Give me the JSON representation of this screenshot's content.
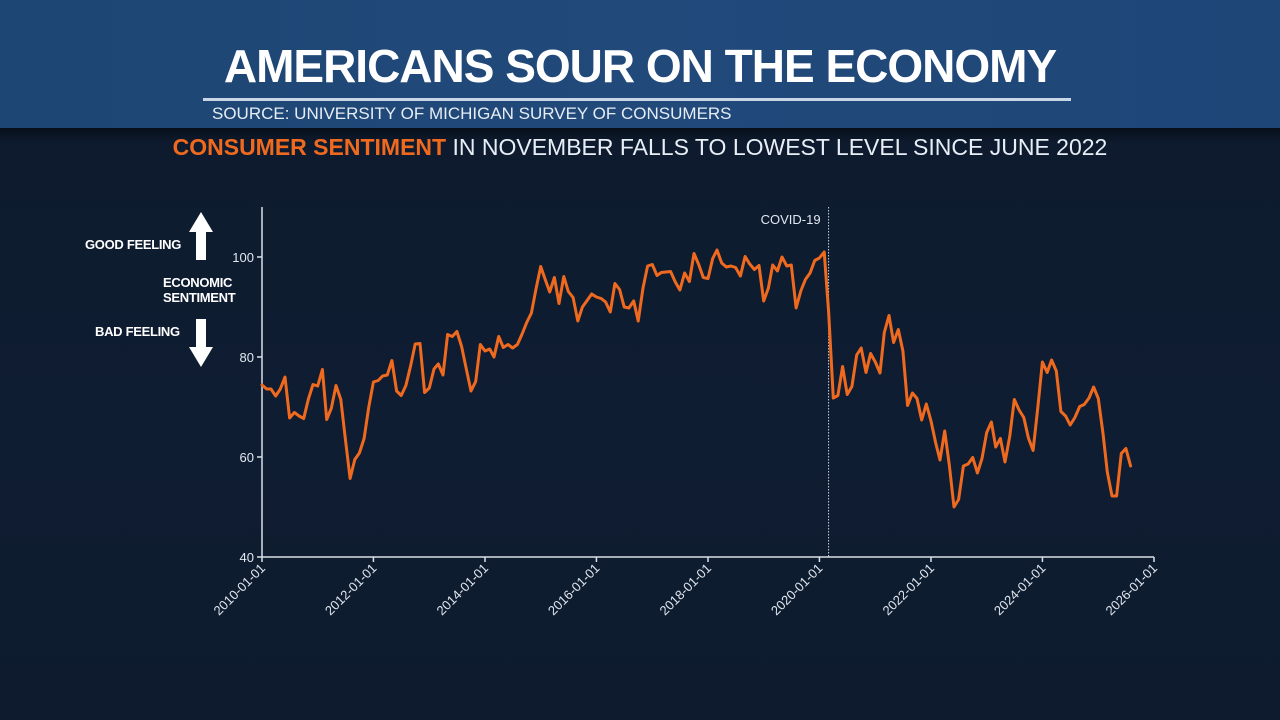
{
  "header": {
    "title": "AMERICANS SOUR ON THE ECONOMY",
    "source": "SOURCE: UNIVERSITY OF MICHIGAN SURVEY OF CONSUMERS"
  },
  "subtitle": {
    "highlight": "CONSUMER SENTIMENT",
    "rest": " IN NOVEMBER FALLS TO LOWEST LEVEL SINCE JUNE 2022"
  },
  "legend": {
    "good": "GOOD FEELING",
    "center_line1": "ECONOMIC",
    "center_line2": "SENTIMENT",
    "bad": "BAD FEELING"
  },
  "colors": {
    "line": "#ef6a1f",
    "accent": "#ef6a1f",
    "axis": "#d8dfe8"
  },
  "chart_data": {
    "type": "line",
    "title": "Consumer Sentiment",
    "xlabel": "",
    "ylabel": "Economic Sentiment",
    "ylim": [
      40,
      110
    ],
    "xlim": [
      "2010-01-01",
      "2026-01-01"
    ],
    "y_ticks": [
      40,
      60,
      80,
      100
    ],
    "x_ticks": [
      "2010-01-01",
      "2012-01-01",
      "2014-01-01",
      "2016-01-01",
      "2018-01-01",
      "2020-01-01",
      "2022-01-01",
      "2024-01-01",
      "2026-01-01"
    ],
    "annotation": {
      "label": "COVID-19",
      "date": "2020-03-01"
    },
    "grid": false,
    "series": [
      {
        "name": "Consumer Sentiment",
        "start": "2010-01",
        "frequency": "monthly",
        "values": [
          74.4,
          73.6,
          73.6,
          72.2,
          73.6,
          76.0,
          67.8,
          68.9,
          68.2,
          67.7,
          71.6,
          74.5,
          74.2,
          77.5,
          67.5,
          69.8,
          74.3,
          71.5,
          63.7,
          55.7,
          59.5,
          60.8,
          63.7,
          69.9,
          75.0,
          75.3,
          76.2,
          76.4,
          79.3,
          73.2,
          72.3,
          74.3,
          78.3,
          82.6,
          82.7,
          72.9,
          73.8,
          77.6,
          78.6,
          76.4,
          84.5,
          84.1,
          85.1,
          82.1,
          77.5,
          73.2,
          75.1,
          82.5,
          81.2,
          81.6,
          80.0,
          84.1,
          81.9,
          82.5,
          81.8,
          82.5,
          84.6,
          86.9,
          88.8,
          93.6,
          98.1,
          95.4,
          93.0,
          95.9,
          90.7,
          96.1,
          93.1,
          91.9,
          87.2,
          90.0,
          91.3,
          92.6,
          92.0,
          91.7,
          91.0,
          89.0,
          94.7,
          93.5,
          90.0,
          89.8,
          91.2,
          87.2,
          93.8,
          98.2,
          98.5,
          96.3,
          96.9,
          97.0,
          97.1,
          95.0,
          93.4,
          96.8,
          95.1,
          100.7,
          98.5,
          95.9,
          95.7,
          99.7,
          101.4,
          98.8,
          98.0,
          98.2,
          97.9,
          96.2,
          100.1,
          98.6,
          97.5,
          98.3,
          91.2,
          93.8,
          98.4,
          97.2,
          100.0,
          98.2,
          98.4,
          89.8,
          93.2,
          95.5,
          96.8,
          99.3,
          99.8,
          101.0,
          89.1,
          71.8,
          72.3,
          78.1,
          72.5,
          74.1,
          80.4,
          81.8,
          76.9,
          80.7,
          79.0,
          76.8,
          84.9,
          88.3,
          82.9,
          85.5,
          81.2,
          70.3,
          72.8,
          71.7,
          67.4,
          70.6,
          67.2,
          62.8,
          59.4,
          65.2,
          58.4,
          50.0,
          51.5,
          58.2,
          58.6,
          59.9,
          56.8,
          59.7,
          64.9,
          67.0,
          62.0,
          63.7,
          59.0,
          64.2,
          71.5,
          69.4,
          67.9,
          63.8,
          61.3,
          69.7,
          79.0,
          76.9,
          79.4,
          77.2,
          69.1,
          68.2,
          66.4,
          67.9,
          70.1,
          70.5,
          71.8,
          74.0,
          71.7,
          64.7,
          57.0,
          52.2,
          52.2,
          60.7,
          61.7,
          58.2
        ]
      }
    ]
  }
}
